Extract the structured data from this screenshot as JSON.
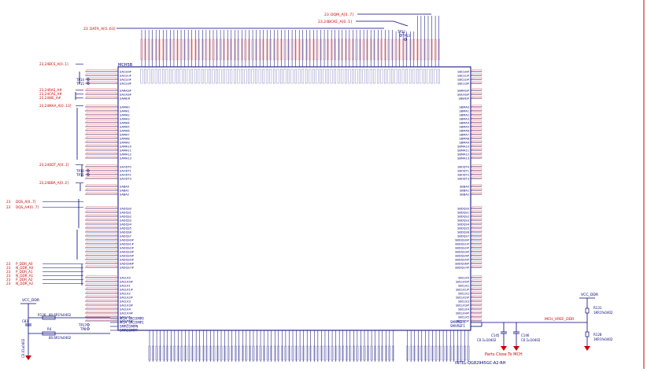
{
  "schematic": {
    "chip_ref": "MCH5B",
    "chip_part": "INTEL-QG82945GC-A2-RH",
    "note": "Parts Close To MCH",
    "top_nets": [
      {
        "pages": "23",
        "name": "DQM_A[0..7]"
      },
      {
        "pages": "23,24",
        "name": "BCKE_A[0..1]"
      },
      {
        "pages": "23",
        "name": "DATA_A[0..63]"
      }
    ],
    "left_nets": [
      {
        "pages": "23,24",
        "name": "BCS_A[0..1]"
      },
      {
        "pages": "23,24",
        "name": "RAS_A#"
      },
      {
        "pages": "23,24",
        "name": "CAS_A#"
      },
      {
        "pages": "23,24",
        "name": "WE_A#"
      },
      {
        "pages": "23,24",
        "name": "MAA_A[0..13]"
      },
      {
        "pages": "23,24",
        "name": "ODT_A[0..1]"
      },
      {
        "pages": "23,24",
        "name": "BBA_A[0..2]"
      },
      {
        "pages": "23",
        "name": "DQS_A[0..7]"
      },
      {
        "pages": "23",
        "name": "DQS_A#[0..7]"
      },
      {
        "pages": "23",
        "name": "P_DDR_A0"
      },
      {
        "pages": "23",
        "name": "N_DDR_A0"
      },
      {
        "pages": "23",
        "name": "P_DDR_A1"
      },
      {
        "pages": "23",
        "name": "N_DDR_A1"
      },
      {
        "pages": "23",
        "name": "P_DDR_A2"
      },
      {
        "pages": "23",
        "name": "N_DDR_A2"
      }
    ],
    "left_pins": [
      "SACS0#",
      "SACS1#",
      "SACS2#",
      "SACS3#",
      "SARAS#",
      "SACAS#",
      "SAWE#",
      "SAMA0",
      "SAMA1",
      "SAMA2",
      "SAMA3",
      "SAMA4",
      "SAMA5",
      "SAMA6",
      "SAMA7",
      "SAMA8",
      "SAMA9",
      "SAMA10",
      "SAMA11",
      "SAMA12",
      "SAMA13",
      "SAODT0",
      "SAODT1",
      "SAODT2",
      "SAODT3",
      "SABA0",
      "SABA1",
      "SABA2",
      "SADQS0",
      "SADQS1",
      "SADQS2",
      "SADQS3",
      "SADQS4",
      "SADQS5",
      "SADQS6",
      "SADQS7",
      "SADQS0#",
      "SADQS1#",
      "SADQS2#",
      "SADQS3#",
      "SADQS4#",
      "SADQS5#",
      "SADQS6#",
      "SADQS7#",
      "SACLK0",
      "SACLK0#",
      "SACLK1",
      "SACLK1#",
      "SACLK2",
      "SACLK2#",
      "SACLK3",
      "SACLK3#",
      "SACLK4",
      "SACLK4#",
      "SACLK5",
      "SACLK5#"
    ],
    "right_pins": [
      "SBCS0#",
      "SBCS1#",
      "SBCS2#",
      "SBCS3#",
      "SBRAS#",
      "SBCAS#",
      "SBWE#",
      "SBMA0",
      "SBMA1",
      "SBMA2",
      "SBMA3",
      "SBMA4",
      "SBMA5",
      "SBMA6",
      "SBMA7",
      "SBMA8",
      "SBMA9",
      "SBMA10",
      "SBMA11",
      "SBMA12",
      "SBMA13",
      "SBODT0",
      "SBODT1",
      "SBODT2",
      "SBODT3",
      "SBBA0",
      "SBBA1",
      "SBBA2",
      "SBDQS0",
      "SBDQS1",
      "SBDQS2",
      "SBDQS3",
      "SBDQS4",
      "SBDQS5",
      "SBDQS6",
      "SBDQS7",
      "SBDQS0#",
      "SBDQS1#",
      "SBDQS2#",
      "SBDQS3#",
      "SBDQS4#",
      "SBDQS5#",
      "SBDQS6#",
      "SBDQS7#",
      "SBCLK0",
      "SBCLK0#",
      "SBCLK1",
      "SBCLK1#",
      "SBCLK2",
      "SBCLK2#",
      "SBCLK3",
      "SBCLK3#",
      "SBCLK4",
      "SBCLK4#",
      "SBCLK5",
      "SBCLK5#"
    ],
    "comp_pins": [
      "MCH_SRCOMP0",
      "MCH_SRCOMP1",
      "SMRCOMPN",
      "SMRCOMPP"
    ],
    "vref_pins": [
      "SMVREF0",
      "SMVREF1"
    ],
    "test_points": [
      "TP14",
      "TP15",
      "TP10",
      "TP11",
      "TP17",
      "TP8",
      "TP12",
      "TP13"
    ],
    "power": [
      "VCC_DDR",
      "VCC_DDR"
    ],
    "vref_net": "MCH_VREF_DDR",
    "components": [
      {
        "ref": "R126",
        "value": "80.6R1%0402"
      },
      {
        "ref": "R4",
        "value": "80.6R1%0402"
      },
      {
        "ref": "C83",
        "value": "C0.01u0402"
      },
      {
        "ref": "C145",
        "value": "C0.1u10402"
      },
      {
        "ref": "C146",
        "value": "C0.1u10402"
      },
      {
        "ref": "R131",
        "value": "1KR1%0402"
      },
      {
        "ref": "R128",
        "value": "1KR1%0402"
      }
    ]
  }
}
